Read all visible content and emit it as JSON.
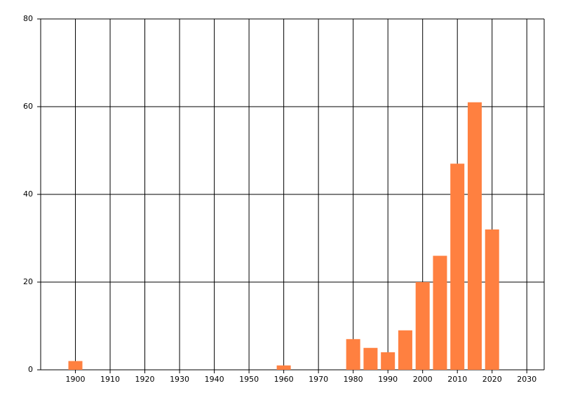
{
  "chart_data": {
    "type": "bar",
    "x": [
      1900,
      1960,
      1980,
      1985,
      1990,
      1995,
      2000,
      2005,
      2010,
      2015,
      2020
    ],
    "values": [
      2,
      1,
      7,
      5,
      4,
      9,
      20,
      26,
      47,
      61,
      32
    ],
    "color": "#ff8040",
    "xlim": [
      1890,
      2035
    ],
    "xticks": [
      1900,
      1910,
      1920,
      1930,
      1940,
      1950,
      1960,
      1970,
      1980,
      1990,
      2000,
      2010,
      2020,
      2030
    ],
    "ylim": [
      0,
      80
    ],
    "yticks": [
      0,
      20,
      40,
      60,
      80
    ],
    "grid": true
  }
}
